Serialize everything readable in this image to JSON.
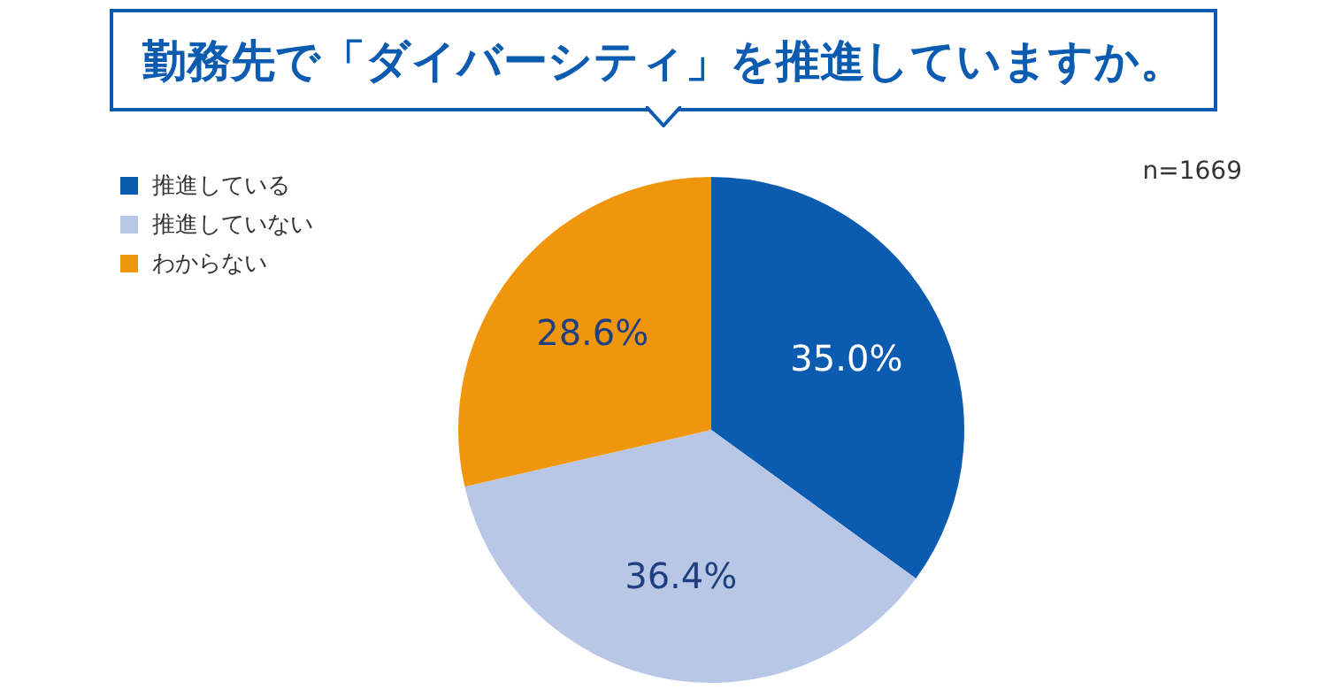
{
  "chart_data": {
    "type": "pie",
    "title": "勤務先で「ダイバーシティ」を推進していますか。",
    "categories": [
      "推進している",
      "推進していない",
      "わからない"
    ],
    "values": [
      35.0,
      36.4,
      28.6
    ],
    "colors": [
      "#0b5cb0",
      "#b9c7e7",
      "#f0960c"
    ],
    "value_labels": [
      "35.0%",
      "36.4%",
      "28.6%"
    ],
    "legend": "top left",
    "annotations": [
      "n=1669"
    ]
  }
}
